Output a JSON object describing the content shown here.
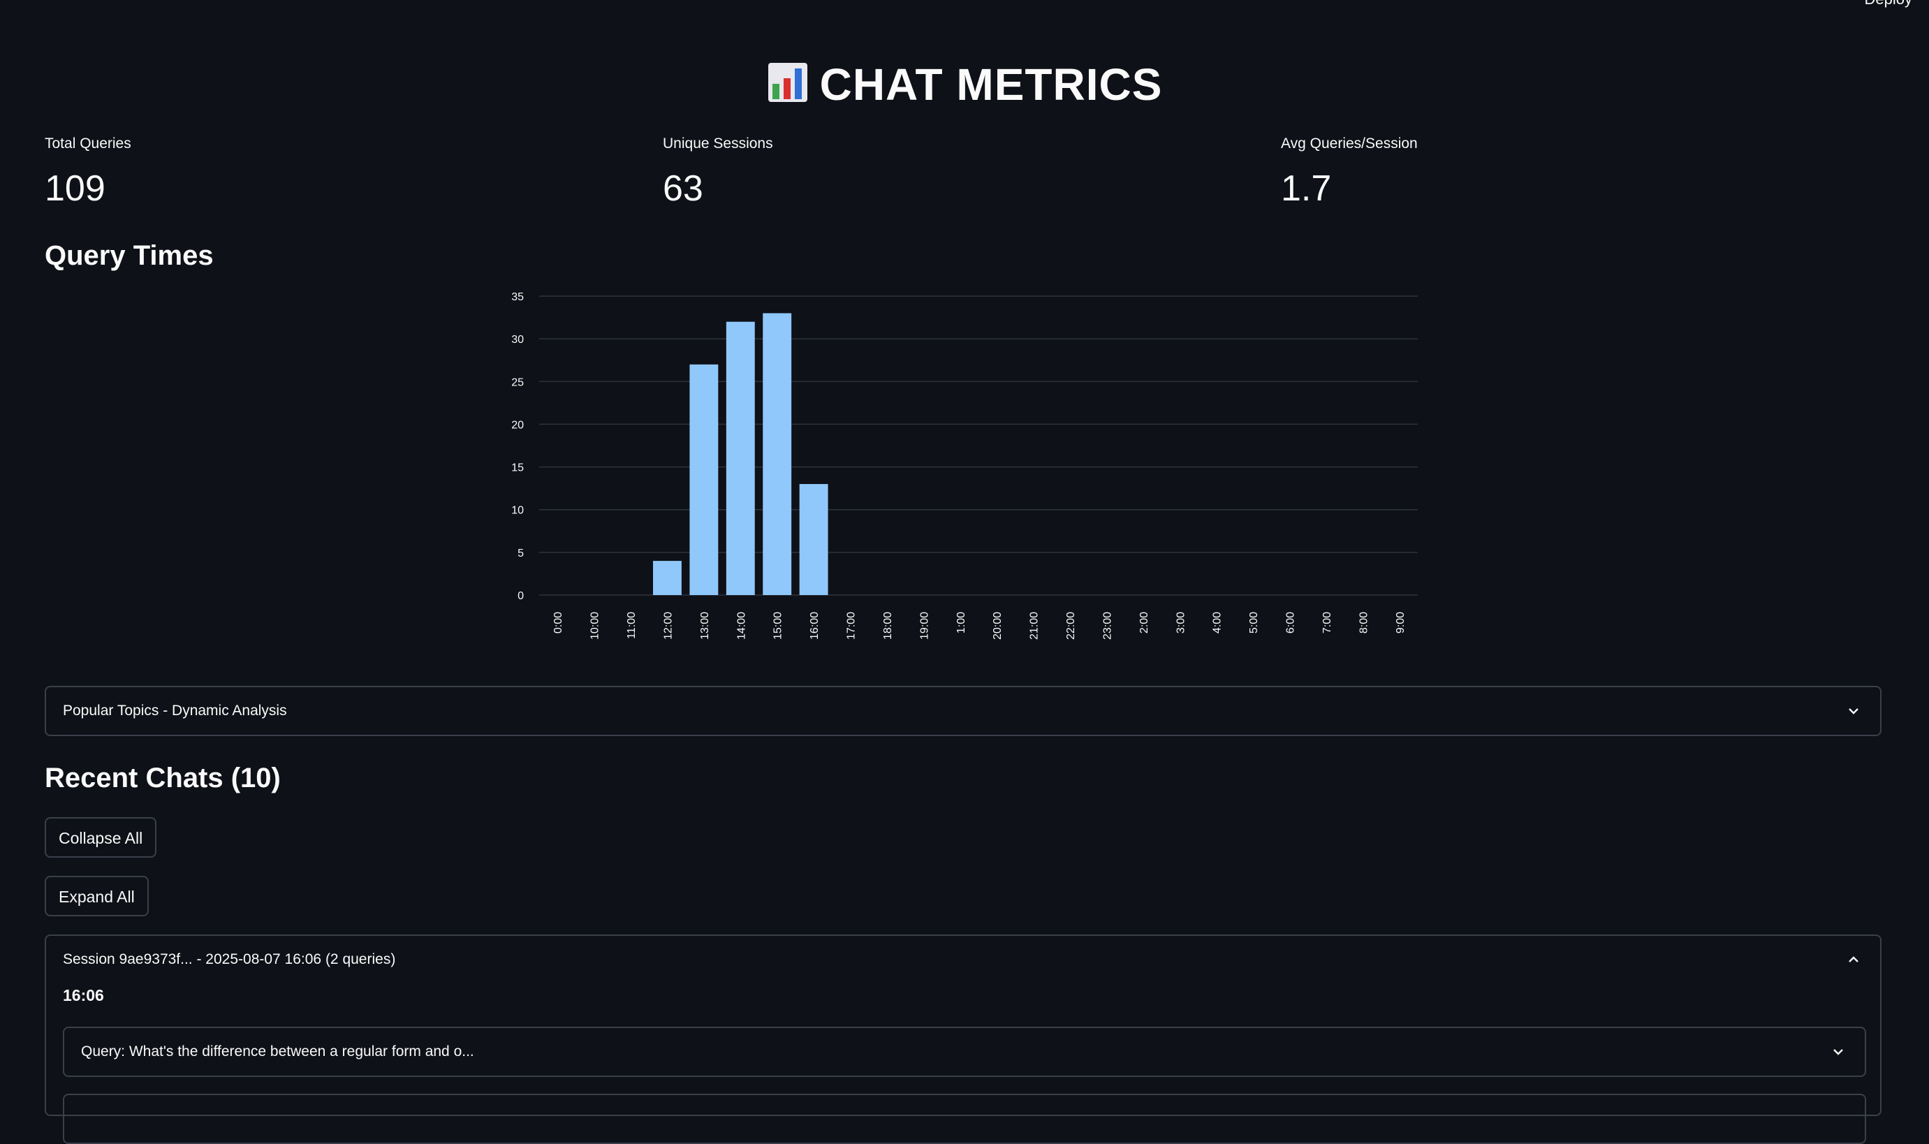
{
  "topbar": {
    "deploy_label": "Deploy"
  },
  "title": {
    "icon": "bar-chart-icon",
    "text": "CHAT METRICS"
  },
  "metrics": [
    {
      "label": "Total Queries",
      "value": "109"
    },
    {
      "label": "Unique Sessions",
      "value": "63"
    },
    {
      "label": "Avg Queries/Session",
      "value": "1.7"
    }
  ],
  "query_times_heading": "Query Times",
  "chart_data": {
    "type": "bar",
    "categories": [
      "0:00",
      "10:00",
      "11:00",
      "12:00",
      "13:00",
      "14:00",
      "15:00",
      "16:00",
      "17:00",
      "18:00",
      "19:00",
      "1:00",
      "20:00",
      "21:00",
      "22:00",
      "23:00",
      "2:00",
      "3:00",
      "4:00",
      "5:00",
      "6:00",
      "7:00",
      "8:00",
      "9:00"
    ],
    "values": [
      0,
      0,
      0,
      4,
      27,
      32,
      33,
      13,
      0,
      0,
      0,
      0,
      0,
      0,
      0,
      0,
      0,
      0,
      0,
      0,
      0,
      0,
      0,
      0
    ],
    "yticks": [
      0,
      5,
      10,
      15,
      20,
      25,
      30,
      35
    ],
    "ylim": [
      0,
      35
    ],
    "grid": true,
    "bar_color": "#90c8fb"
  },
  "popular_topics": {
    "label": "Popular Topics - Dynamic Analysis"
  },
  "recent_chats": {
    "heading": "Recent Chats (10)",
    "collapse_label": "Collapse All",
    "expand_label": "Expand All",
    "session": {
      "label": "Session 9ae9373f... - 2025-08-07 16:06 (2 queries)",
      "time": "16:06",
      "query_label": "Query: What's the difference between a regular form and o..."
    }
  },
  "colors": {
    "background": "#0e1117",
    "border": "#3b3f4a",
    "bar": "#90c8fb"
  }
}
